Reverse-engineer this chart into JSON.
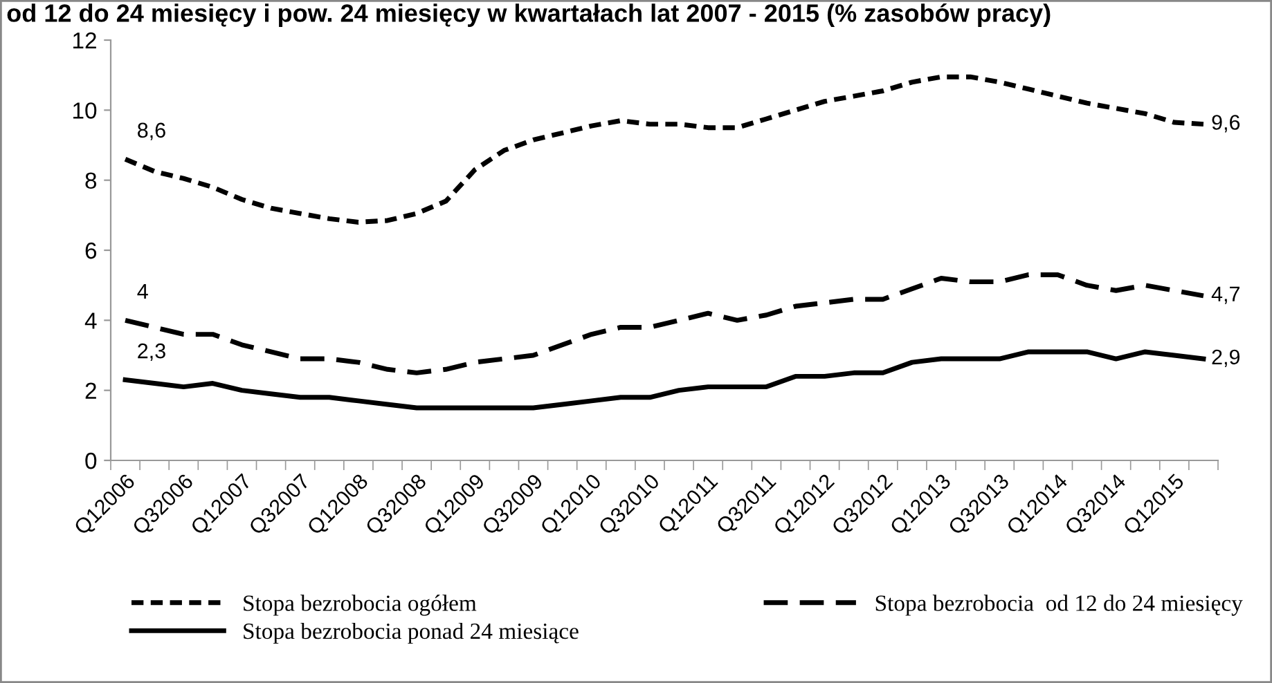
{
  "chart_data": {
    "type": "line",
    "title": "od 12 do 24 miesięcy i pow. 24 miesięcy w kwartałach lat 2007 - 2015 (% zasobów pracy)",
    "categories": [
      "Q12006",
      null,
      "Q32006",
      null,
      "Q12007",
      null,
      "Q32007",
      null,
      "Q12008",
      null,
      "Q32008",
      null,
      "Q12009",
      null,
      "Q32009",
      null,
      "Q12010",
      null,
      "Q32010",
      null,
      "Q12011",
      null,
      "Q32011",
      null,
      "Q12012",
      null,
      "Q32012",
      null,
      "Q12013",
      null,
      "Q32013",
      null,
      "Q12014",
      null,
      "Q32014",
      null,
      "Q12015",
      null
    ],
    "ylim": [
      0,
      12
    ],
    "yticks": [
      0,
      2,
      4,
      6,
      8,
      10,
      12
    ],
    "grid": false,
    "legend": "bottom",
    "marker": "none",
    "series": [
      {
        "name": "Stopa bezrobocia ogółem",
        "color": "#000000",
        "line_style": "dotted",
        "values": [
          8.6,
          8.25,
          8.05,
          7.8,
          7.45,
          7.2,
          7.05,
          6.9,
          6.8,
          6.85,
          7.05,
          7.4,
          8.3,
          8.85,
          9.15,
          9.35,
          9.55,
          9.7,
          9.6,
          9.6,
          9.5,
          9.5,
          9.75,
          10.0,
          10.25,
          10.4,
          10.55,
          10.8,
          10.95,
          10.95,
          10.8,
          10.6,
          10.4,
          10.2,
          10.05,
          9.9,
          9.65,
          9.6
        ],
        "value_labels": [
          "8,6",
          null,
          null,
          null,
          null,
          null,
          null,
          null,
          null,
          null,
          null,
          null,
          null,
          null,
          null,
          null,
          null,
          null,
          null,
          null,
          null,
          null,
          null,
          null,
          null,
          null,
          null,
          null,
          null,
          null,
          null,
          null,
          null,
          null,
          null,
          null,
          null,
          "9,6"
        ]
      },
      {
        "name": "Stopa bezrobocia  od 12 do 24 miesięcy",
        "color": "#000000",
        "line_style": "dashed",
        "values": [
          4.0,
          3.8,
          3.6,
          3.6,
          3.3,
          3.1,
          2.9,
          2.9,
          2.8,
          2.6,
          2.5,
          2.6,
          2.8,
          2.9,
          3.0,
          3.3,
          3.6,
          3.8,
          3.8,
          4.0,
          4.2,
          4.0,
          4.15,
          4.4,
          4.5,
          4.6,
          4.6,
          4.9,
          5.2,
          5.1,
          5.1,
          5.3,
          5.3,
          5.0,
          4.85,
          5.0,
          4.85,
          4.7
        ],
        "value_labels": [
          "4",
          null,
          null,
          null,
          null,
          null,
          null,
          null,
          null,
          null,
          null,
          null,
          null,
          null,
          null,
          null,
          null,
          null,
          null,
          null,
          null,
          null,
          null,
          null,
          null,
          null,
          null,
          null,
          null,
          null,
          null,
          null,
          null,
          null,
          null,
          null,
          null,
          "4,7"
        ]
      },
      {
        "name": "Stopa bezrobocia ponad 24 miesiące",
        "color": "#000000",
        "line_style": "solid",
        "values": [
          2.3,
          2.2,
          2.1,
          2.2,
          2.0,
          1.9,
          1.8,
          1.8,
          1.7,
          1.6,
          1.5,
          1.5,
          1.5,
          1.5,
          1.5,
          1.6,
          1.7,
          1.8,
          1.8,
          2.0,
          2.1,
          2.1,
          2.1,
          2.4,
          2.4,
          2.5,
          2.5,
          2.8,
          2.9,
          2.9,
          2.9,
          3.1,
          3.1,
          3.1,
          2.9,
          3.1,
          3.0,
          2.9
        ],
        "value_labels": [
          "2,3",
          null,
          null,
          null,
          null,
          null,
          null,
          null,
          null,
          null,
          null,
          null,
          null,
          null,
          null,
          null,
          null,
          null,
          null,
          null,
          null,
          null,
          null,
          null,
          null,
          null,
          null,
          null,
          null,
          null,
          null,
          null,
          null,
          null,
          null,
          null,
          null,
          "2,9"
        ]
      }
    ]
  }
}
